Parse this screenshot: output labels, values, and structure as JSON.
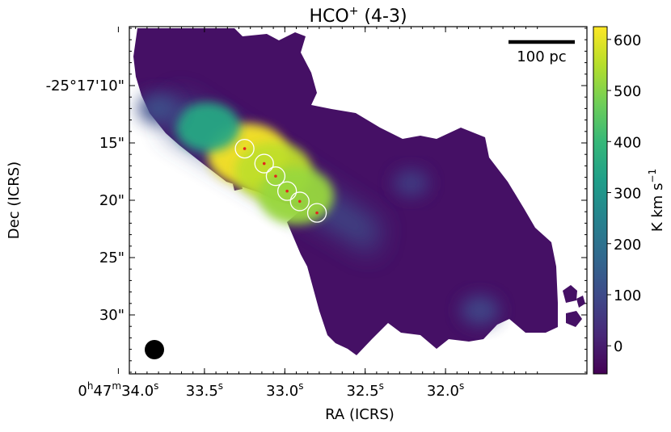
{
  "chart_data": {
    "type": "heatmap",
    "title": {
      "main": "HCO",
      "sup": "+",
      "rest": " (4-3)"
    },
    "xlabel": "RA (ICRS)",
    "ylabel": "Dec (ICRS)",
    "colorbar_label": {
      "main": "K km s",
      "sup": "−1"
    },
    "x_ticks": [
      {
        "arcsec": -3.0,
        "label": [
          [
            "0",
            ""
          ],
          [
            "h",
            "sup"
          ],
          [
            "47",
            ""
          ],
          [
            "m",
            "sup"
          ],
          [
            "34.0",
            ""
          ],
          [
            "s",
            "sup"
          ]
        ]
      },
      {
        "arcsec": 4.5,
        "label": [
          [
            "33.5",
            ""
          ],
          [
            "s",
            "sup"
          ]
        ]
      },
      {
        "arcsec": 11.5,
        "label": [
          [
            "33.0",
            ""
          ],
          [
            "s",
            "sup"
          ]
        ]
      },
      {
        "arcsec": 18.5,
        "label": [
          [
            "32.5",
            ""
          ],
          [
            "s",
            "sup"
          ]
        ]
      },
      {
        "arcsec": 25.5,
        "label": [
          [
            "32.0",
            ""
          ],
          [
            "s",
            "sup"
          ]
        ]
      }
    ],
    "y_ticks": [
      {
        "arcsec": 10,
        "label": "-25°17'10\""
      },
      {
        "arcsec": 15,
        "label": "15\""
      },
      {
        "arcsec": 20,
        "label": "20\""
      },
      {
        "arcsec": 25,
        "label": "25\""
      },
      {
        "arcsec": 30,
        "label": "30\""
      }
    ],
    "colorbar": {
      "range": [
        -55,
        625
      ],
      "ticks": [
        0,
        100,
        200,
        300,
        400,
        500,
        600
      ],
      "colormap": [
        "#440154",
        "#482878",
        "#3e4989",
        "#31688e",
        "#26828e",
        "#1f9e89",
        "#35b779",
        "#6ece58",
        "#b5de2b",
        "#fde725"
      ]
    },
    "scalebar_label": "100 pc",
    "beam": "filled circle, lower-left",
    "sources": [
      {
        "x": 8.0,
        "y": 15.5
      },
      {
        "x": 9.7,
        "y": 16.8
      },
      {
        "x": 10.7,
        "y": 17.9
      },
      {
        "x": 11.7,
        "y": 19.2
      },
      {
        "x": 12.8,
        "y": 20.1
      },
      {
        "x": 14.3,
        "y": 21.1
      }
    ],
    "emission_peaks": [
      {
        "x": 8.3,
        "y": 16.0,
        "value": 620
      },
      {
        "x": 10.5,
        "y": 17.5,
        "value": 560
      },
      {
        "x": 12.5,
        "y": 19.6,
        "value": 520
      },
      {
        "x": 4.8,
        "y": 13.6,
        "value": 350
      },
      {
        "x": 0.5,
        "y": 12.0,
        "value": 110
      },
      {
        "x": 22.5,
        "y": 18.5,
        "value": 70
      },
      {
        "x": 28.5,
        "y": 29.6,
        "value": 90
      }
    ]
  }
}
